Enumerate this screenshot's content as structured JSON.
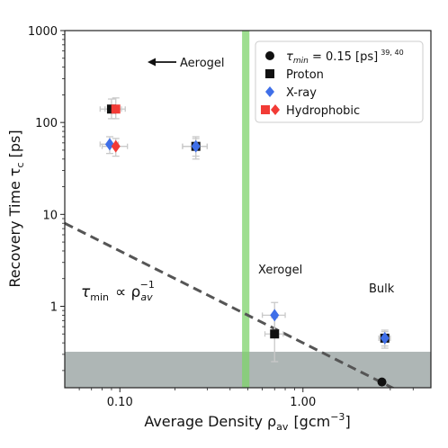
{
  "chart_data": {
    "type": "scatter",
    "title": "",
    "xlabel": "Average Density ρ",
    "xlabel_sub": "av",
    "xlabel_unit": "[gcm",
    "xlabel_unit_sup": "−3",
    "xlabel_unit_close": "]",
    "ylabel": "Recovery Time τ",
    "ylabel_sub": "c",
    "ylabel_unit": "[ps]",
    "xscale": "log",
    "yscale": "log",
    "xlim": [
      0.05,
      5.0
    ],
    "ylim": [
      0.13,
      1000
    ],
    "x_ticks": [
      0.1,
      1.0
    ],
    "x_tick_labels": [
      "0.10",
      "1.00"
    ],
    "y_ticks": [
      1,
      10,
      100,
      1000
    ],
    "y_tick_labels": [
      "1",
      "10",
      "100",
      "1000"
    ],
    "grid": false,
    "legend_position": "top-right",
    "colors": {
      "proton": "#111111",
      "xray": "#3f6fe8",
      "hydrophobic": "#f23b36",
      "tau_min": "#111111",
      "shade": "#aeb6b5",
      "green_band": "#7ed36b",
      "fit_line": "#555555",
      "error_bar": "#c9c9c9"
    },
    "shaded_region": {
      "y_from": 0.13,
      "y_to": 0.32
    },
    "vertical_band": {
      "x_from": 0.465,
      "x_to": 0.51
    },
    "fit_line": {
      "label": "τ",
      "label_sub": "min",
      "label_rel": "∝ ρ",
      "label_rel_sub": "av",
      "label_rel_sup": "−1",
      "x": [
        0.05,
        3.6
      ],
      "y": [
        8.0,
        0.111
      ]
    },
    "series": [
      {
        "name": "τmin = 0.15 [ps]",
        "marker": "circle",
        "points": [
          {
            "x": 2.7,
            "y": 0.15
          }
        ]
      },
      {
        "name": "Proton",
        "marker": "square",
        "points": [
          {
            "x": 0.09,
            "y": 140,
            "xerr": 0.012,
            "yerr_lo": 30,
            "yerr_hi": 40
          },
          {
            "x": 0.26,
            "y": 55,
            "xerr": 0.04,
            "yerr_lo": 15,
            "yerr_hi": 15
          },
          {
            "x": 0.7,
            "y": 0.5,
            "xerr": 0.08,
            "yerr_lo": 0.25,
            "yerr_hi": 0.25
          },
          {
            "x": 2.8,
            "y": 0.45,
            "xerr": 0.2,
            "yerr_lo": 0.1,
            "yerr_hi": 0.1
          }
        ]
      },
      {
        "name": "X-ray",
        "marker": "diamond",
        "points": [
          {
            "x": 0.088,
            "y": 58,
            "xerr": 0.01,
            "yerr_lo": 12,
            "yerr_hi": 12
          },
          {
            "x": 0.26,
            "y": 55,
            "xerr": 0.04,
            "yerr_lo": 12,
            "yerr_hi": 12
          },
          {
            "x": 0.7,
            "y": 0.8,
            "xerr": 0.1,
            "yerr_lo": 0.25,
            "yerr_hi": 0.3
          },
          {
            "x": 2.8,
            "y": 0.45,
            "xerr": 0.2,
            "yerr_lo": 0.08,
            "yerr_hi": 0.08
          }
        ]
      },
      {
        "name": "Hydrophobic",
        "marker": "square+diamond",
        "points": [
          {
            "x": 0.095,
            "y": 140,
            "xerr": 0.012,
            "yerr_lo": 30,
            "yerr_hi": 45,
            "marker": "square"
          },
          {
            "x": 0.095,
            "y": 55,
            "xerr": 0.015,
            "yerr_lo": 12,
            "yerr_hi": 12,
            "marker": "diamond"
          }
        ]
      }
    ],
    "legend": [
      {
        "label": "τ",
        "label_sub": "min",
        "label_rest": " = 0.15 [ps]",
        "label_sup": "39, 40",
        "marker": "circle"
      },
      {
        "label": "Proton",
        "marker": "square"
      },
      {
        "label": "X-ray",
        "marker": "diamond"
      },
      {
        "label": "Hydrophobic",
        "marker": "square+diamond"
      }
    ],
    "annotations": [
      {
        "text": "Aerogel",
        "arrow": "left"
      },
      {
        "text": "Xerogel"
      },
      {
        "text": "Bulk"
      }
    ]
  }
}
